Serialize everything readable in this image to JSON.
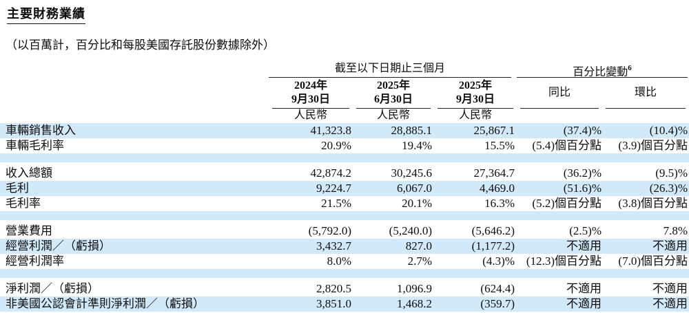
{
  "title": "主要財務業績",
  "subtitle": "（以百萬計，百分比和每股美國存託股份數據除外）",
  "colors": {
    "stripe": "#d2e9fa",
    "rule": "#222222",
    "text": "#0d0d0d"
  },
  "table": {
    "period_header": "截至以下日期止三個月",
    "change_header": "百分比變動",
    "change_header_sup": "6",
    "period_columns": [
      {
        "line1": "2024年",
        "line2": "9月30日",
        "currency": "人民幣"
      },
      {
        "line1": "2025年",
        "line2": "6月30日",
        "currency": "人民幣"
      },
      {
        "line1": "2025年",
        "line2": "9月30日",
        "currency": "人民幣"
      }
    ],
    "change_columns": [
      {
        "label": "同比"
      },
      {
        "label": "環比"
      }
    ],
    "rows": [
      {
        "label": "車輛銷售收入",
        "v1": "41,323.8",
        "v2": "28,885.1",
        "v3": "25,867.1",
        "yoy": "(37.4)%",
        "qoq": "(10.4)%"
      },
      {
        "label": "車輛毛利率",
        "v1": "20.9%",
        "v2": "19.4%",
        "v3": "15.5%",
        "yoy": "(5.4)個百分點",
        "qoq": "(3.9)個百分點"
      },
      {
        "spacer": true
      },
      {
        "label": "收入總額",
        "v1": "42,874.2",
        "v2": "30,245.6",
        "v3": "27,364.7",
        "yoy": "(36.2)%",
        "qoq": "(9.5)%"
      },
      {
        "label": "毛利",
        "v1": "9,224.7",
        "v2": "6,067.0",
        "v3": "4,469.0",
        "yoy": "(51.6)%",
        "qoq": "(26.3)%"
      },
      {
        "label": "毛利率",
        "v1": "21.5%",
        "v2": "20.1%",
        "v3": "16.3%",
        "yoy": "(5.2)個百分點",
        "qoq": "(3.8)個百分點"
      },
      {
        "spacer": true
      },
      {
        "label": "營業費用",
        "v1": "(5,792.0)",
        "v2": "(5,240.0)",
        "v3": "(5,646.2)",
        "yoy": "(2.5)%",
        "qoq": "7.8%"
      },
      {
        "label": "經營利潤／（虧損）",
        "v1": "3,432.7",
        "v2": "827.0",
        "v3": "(1,177.2)",
        "yoy": "不適用",
        "qoq": "不適用"
      },
      {
        "label": "經營利潤率",
        "v1": "8.0%",
        "v2": "2.7%",
        "v3": "(4.3)%",
        "yoy": "(12.3)個百分點",
        "qoq": "(7.0)個百分點"
      },
      {
        "spacer": true
      },
      {
        "label": "淨利潤／（虧損）",
        "v1": "2,820.5",
        "v2": "1,096.9",
        "v3": "(624.4)",
        "yoy": "不適用",
        "qoq": "不適用"
      },
      {
        "label": "非美國公認會計準則淨利潤／（虧損）",
        "v1": "3,851.0",
        "v2": "1,468.2",
        "v3": "(359.7)",
        "yoy": "不適用",
        "qoq": "不適用"
      }
    ]
  }
}
